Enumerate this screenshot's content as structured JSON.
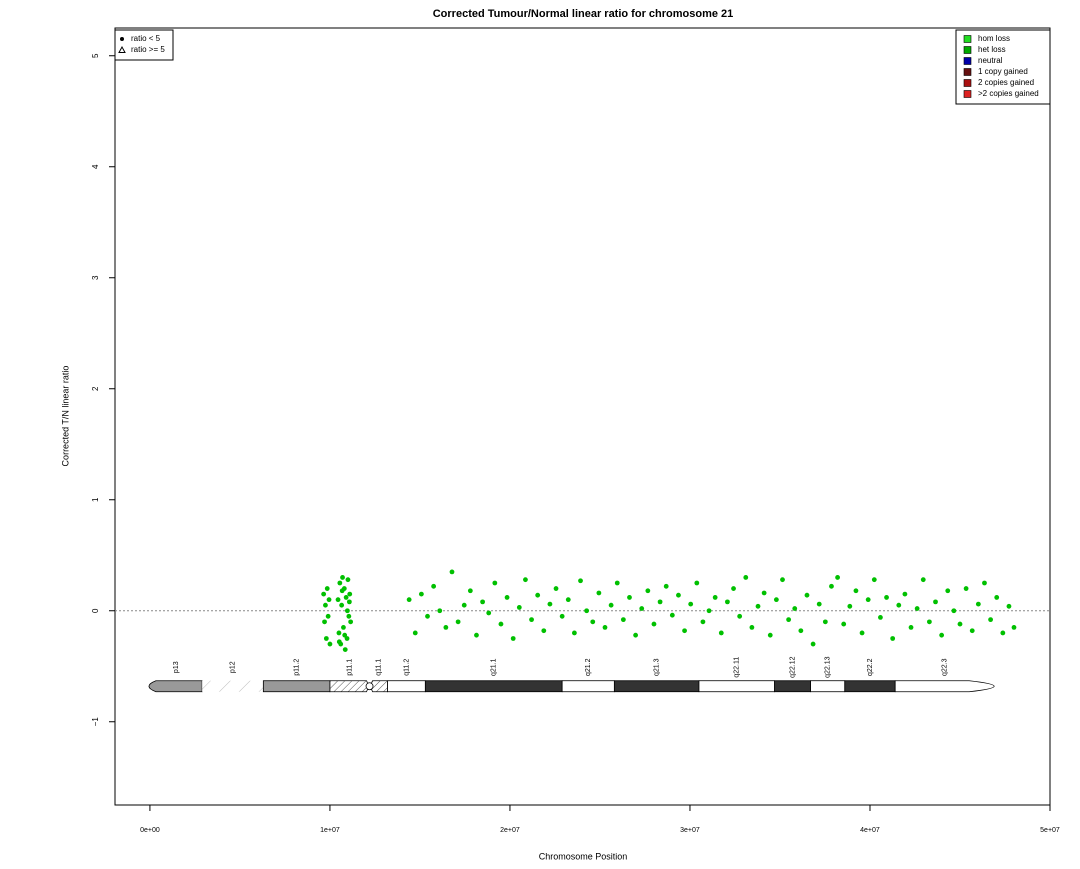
{
  "chart_data": {
    "type": "scatter",
    "title": "Corrected Tumour/Normal linear ratio for chromosome  21",
    "xlabel": "Chromosome Position",
    "ylabel": "Corrected T/N linear ratio",
    "xlim": [
      -1940000,
      50000000
    ],
    "ylim": [
      -1.75,
      5.25
    ],
    "xticks": [
      {
        "value": 0,
        "label": "0e+00"
      },
      {
        "value": 10000000,
        "label": "1e+07"
      },
      {
        "value": 20000000,
        "label": "2e+07"
      },
      {
        "value": 30000000,
        "label": "3e+07"
      },
      {
        "value": 40000000,
        "label": "4e+07"
      },
      {
        "value": 50000000,
        "label": "5e+07"
      }
    ],
    "yticks": [
      {
        "value": -1,
        "label": "−1"
      },
      0,
      1,
      2,
      3,
      4,
      5
    ],
    "reference_line": 0,
    "color": "#00c000",
    "x": [
      9650000,
      9700000,
      9750000,
      9800000,
      9850000,
      9900000,
      9950000,
      10000000,
      10450000,
      10500000,
      10550000,
      10600000,
      10650000,
      10700000,
      10750000,
      10800000,
      10850000,
      10900000,
      10950000,
      11000000,
      11050000,
      11100000,
      11150000,
      10520000,
      10680000,
      10820000,
      10970000,
      11080000,
      14400000,
      14740000,
      15080000,
      15420000,
      15760000,
      16100000,
      16440000,
      16780000,
      17120000,
      17460000,
      17800000,
      18140000,
      18480000,
      18820000,
      19160000,
      19500000,
      19840000,
      20180000,
      20520000,
      20860000,
      21200000,
      21540000,
      21880000,
      22220000,
      22560000,
      22900000,
      23240000,
      23580000,
      23920000,
      24260000,
      24600000,
      24940000,
      25280000,
      25620000,
      25960000,
      26300000,
      26640000,
      26980000,
      27320000,
      27660000,
      28000000,
      28340000,
      28680000,
      29020000,
      29360000,
      29700000,
      30040000,
      30380000,
      30720000,
      31060000,
      31400000,
      31740000,
      32080000,
      32420000,
      32760000,
      33100000,
      33440000,
      33780000,
      34120000,
      34460000,
      34800000,
      35140000,
      35480000,
      35820000,
      36160000,
      36500000,
      36840000,
      37180000,
      37520000,
      37860000,
      38200000,
      38540000,
      38880000,
      39220000,
      39560000,
      39900000,
      40240000,
      40580000,
      40920000,
      41260000,
      41600000,
      41940000,
      42280000,
      42620000,
      42960000,
      43300000,
      43640000,
      43980000,
      44320000,
      44660000,
      45000000,
      45340000,
      45680000,
      46020000,
      46360000,
      46700000,
      47040000,
      47380000,
      47720000,
      48000000
    ],
    "values": [
      0.15,
      -0.1,
      0.05,
      -0.25,
      0.2,
      -0.05,
      0.1,
      -0.3,
      0.1,
      -0.2,
      0.25,
      -0.3,
      0.05,
      0.3,
      -0.15,
      0.2,
      -0.35,
      0.12,
      -0.25,
      0.28,
      -0.05,
      0.15,
      -0.1,
      -0.28,
      0.18,
      -0.22,
      0.0,
      0.08,
      0.1,
      -0.2,
      0.15,
      -0.05,
      0.22,
      0.0,
      -0.15,
      0.35,
      -0.1,
      0.05,
      0.18,
      -0.22,
      0.08,
      -0.02,
      0.25,
      -0.12,
      0.12,
      -0.25,
      0.03,
      0.28,
      -0.08,
      0.14,
      -0.18,
      0.06,
      0.2,
      -0.05,
      0.1,
      -0.2,
      0.27,
      0.0,
      -0.1,
      0.16,
      -0.15,
      0.05,
      0.25,
      -0.08,
      0.12,
      -0.22,
      0.02,
      0.18,
      -0.12,
      0.08,
      0.22,
      -0.04,
      0.14,
      -0.18,
      0.06,
      0.25,
      -0.1,
      0.0,
      0.12,
      -0.2,
      0.08,
      0.2,
      -0.05,
      0.3,
      -0.15,
      0.04,
      0.16,
      -0.22,
      0.1,
      0.28,
      -0.08,
      0.02,
      -0.18,
      0.14,
      -0.3,
      0.06,
      -0.1,
      0.22,
      0.3,
      -0.12,
      0.04,
      0.18,
      -0.2,
      0.1,
      0.28,
      -0.06,
      0.12,
      -0.25,
      0.05,
      0.15,
      -0.15,
      0.02,
      0.28,
      -0.1,
      0.08,
      -0.22,
      0.18,
      0.0,
      -0.12,
      0.2,
      -0.18,
      0.06,
      0.25,
      -0.08,
      0.12,
      -0.2,
      0.04,
      -0.15
    ],
    "ideogram_y": -0.68,
    "bands": [
      {
        "name": "p13",
        "start": 0,
        "end": 2900000,
        "stain": "gray"
      },
      {
        "name": "p12",
        "start": 2900000,
        "end": 6300000,
        "stain": "stalk"
      },
      {
        "name": "p11.2",
        "start": 6300000,
        "end": 10000000,
        "stain": "gray"
      },
      {
        "name": "p11.1",
        "start": 10000000,
        "end": 12200000,
        "stain": "acen"
      },
      {
        "name": "q11.1",
        "start": 12200000,
        "end": 13200000,
        "stain": "acen"
      },
      {
        "name": "q11.2",
        "start": 13200000,
        "end": 15300000,
        "stain": "white"
      },
      {
        "name": "q21.1",
        "start": 15300000,
        "end": 22900000,
        "stain": "dark"
      },
      {
        "name": "q21.2",
        "start": 22900000,
        "end": 25800000,
        "stain": "white"
      },
      {
        "name": "q21.3",
        "start": 25800000,
        "end": 30500000,
        "stain": "dark"
      },
      {
        "name": "q22.11",
        "start": 30500000,
        "end": 34700000,
        "stain": "white"
      },
      {
        "name": "q22.12",
        "start": 34700000,
        "end": 36700000,
        "stain": "dark"
      },
      {
        "name": "q22.13",
        "start": 36700000,
        "end": 38600000,
        "stain": "white"
      },
      {
        "name": "q22.2",
        "start": 38600000,
        "end": 41400000,
        "stain": "dark"
      },
      {
        "name": "q22.3",
        "start": 41400000,
        "end": 46900000,
        "stain": "white"
      }
    ],
    "shape_legend": [
      "ratio < 5",
      "ratio >= 5"
    ],
    "color_legend": [
      {
        "name": "hom loss",
        "color": "#22dd22"
      },
      {
        "name": "het loss",
        "color": "#00aa00"
      },
      {
        "name": "neutral",
        "color": "#0000aa"
      },
      {
        "name": "1 copy gained",
        "color": "#661111"
      },
      {
        "name": "2 copies gained",
        "color": "#aa1111"
      },
      {
        "name": ">2 copies gained",
        "color": "#dd2222"
      }
    ]
  }
}
